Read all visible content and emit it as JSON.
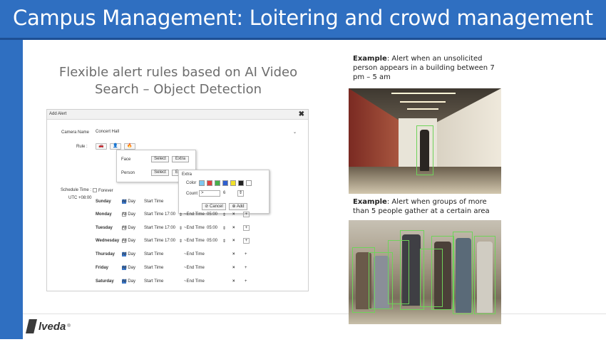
{
  "header": {
    "title": "Campus Management: Loitering and crowd management"
  },
  "subtitle": {
    "line1": "Flexible alert rules based on AI Video",
    "line2": "Search – Object Detection"
  },
  "dialog": {
    "title": "Add Alert",
    "close_glyph": "✖",
    "camera_label": "Camera Name",
    "camera_value": "Concert Hall",
    "rule_label": "Rule :",
    "schedule_label": "Schedule Time :",
    "forever_label": "Forever",
    "timezone": "UTC +08:00",
    "rule_popup": {
      "items": [
        {
          "label": "Face",
          "select": "Select",
          "extra": "Extra"
        },
        {
          "label": "Person",
          "select": "Select",
          "extra": "Extra"
        }
      ]
    },
    "extra_popup": {
      "title": "Extra",
      "color_label": "Color",
      "count_label": "Count",
      "count_operator": ">",
      "count_value": "6",
      "cancel_label": "Cancel",
      "add_label": "Add",
      "swatch_colors": [
        "#7ec8f0",
        "#e04040",
        "#46b04a",
        "#2f5fd0",
        "#f2e22a",
        "#222222",
        "#ffffff"
      ]
    },
    "days": [
      {
        "name": "Sunday",
        "all_day": "All Day",
        "checked": true,
        "start_label": "Start Time",
        "start": "",
        "end_label": "",
        "end": ""
      },
      {
        "name": "Monday",
        "all_day": "All Day",
        "checked": false,
        "start_label": "Start Time",
        "start": "17:00",
        "end_label": "~End Time",
        "end": "05:00"
      },
      {
        "name": "Tuesday",
        "all_day": "All Day",
        "checked": false,
        "start_label": "Start Time",
        "start": "17:00",
        "end_label": "~End Time",
        "end": "05:00"
      },
      {
        "name": "Wednesday",
        "all_day": "All Day",
        "checked": false,
        "start_label": "Start Time",
        "start": "17:00",
        "end_label": "~End Time",
        "end": "05:00"
      },
      {
        "name": "Thursday",
        "all_day": "All Day",
        "checked": true,
        "start_label": "Start Time",
        "start": "",
        "end_label": "~End Time",
        "end": ""
      },
      {
        "name": "Friday",
        "all_day": "All Day",
        "checked": true,
        "start_label": "Start Time",
        "start": "",
        "end_label": "~End Time",
        "end": ""
      },
      {
        "name": "Saturday",
        "all_day": "All Day",
        "checked": true,
        "start_label": "Start Time",
        "start": "",
        "end_label": "~End Time",
        "end": ""
      }
    ]
  },
  "example1": {
    "label": "Example",
    "text": ": Alert when an unsolicited person appears in a building between 7 pm – 5 am"
  },
  "example2": {
    "label": "Example",
    "text": ": Alert when groups of more than 5 people gather at a certain area"
  },
  "logo": {
    "text": "lveda",
    "mark": "registered"
  },
  "colors": {
    "title_bar": "#2f6fc1",
    "detection_box": "#6fd35a"
  },
  "icons": {
    "close": "close-icon",
    "car": "car-icon",
    "person": "person-icon",
    "fire": "fire-icon",
    "cancel": "cancel-icon",
    "add": "plus-icon"
  }
}
